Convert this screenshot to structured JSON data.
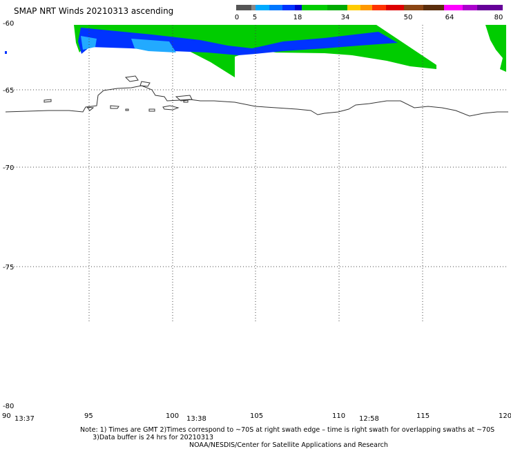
{
  "title": "SMAP NRT Winds 20210313 ascending",
  "colorbar": {
    "labels": [
      "0",
      "5",
      "18",
      "34",
      "50",
      "64",
      "80"
    ],
    "colors": [
      "#555555",
      "#888888",
      "#00aaff",
      "#0077ff",
      "#0033ff",
      "#0000cc",
      "#00cc00",
      "#00aa00",
      "#ffcc00",
      "#ff9900",
      "#ff3300",
      "#dd0000",
      "#8b4513",
      "#5a2d0c",
      "#ff00ff",
      "#aa00cc",
      "#660099"
    ]
  },
  "axes": {
    "lat_labels": [
      "-60",
      "-65",
      "-70",
      "-75",
      "-80"
    ],
    "lon_labels": [
      "90",
      "95",
      "100",
      "105",
      "110",
      "115",
      "120"
    ],
    "grid": true
  },
  "swath_times": [
    "13:37",
    "13:38",
    "12:58"
  ],
  "note_lines": [
    "Note: 1) Times are GMT 2)Times correspond to ~70S at right swath edge – time is right swath for overlapping swaths at ~70S",
    "      3)Data buffer is 24 hrs for 20210313"
  ],
  "credit": "NOAA/NESDIS/Center for Satellite Applications and Research",
  "wind_colors": {
    "light_blue": "#22aaff",
    "blue": "#0033ff",
    "green": "#00cc00",
    "coast": "#333333"
  }
}
